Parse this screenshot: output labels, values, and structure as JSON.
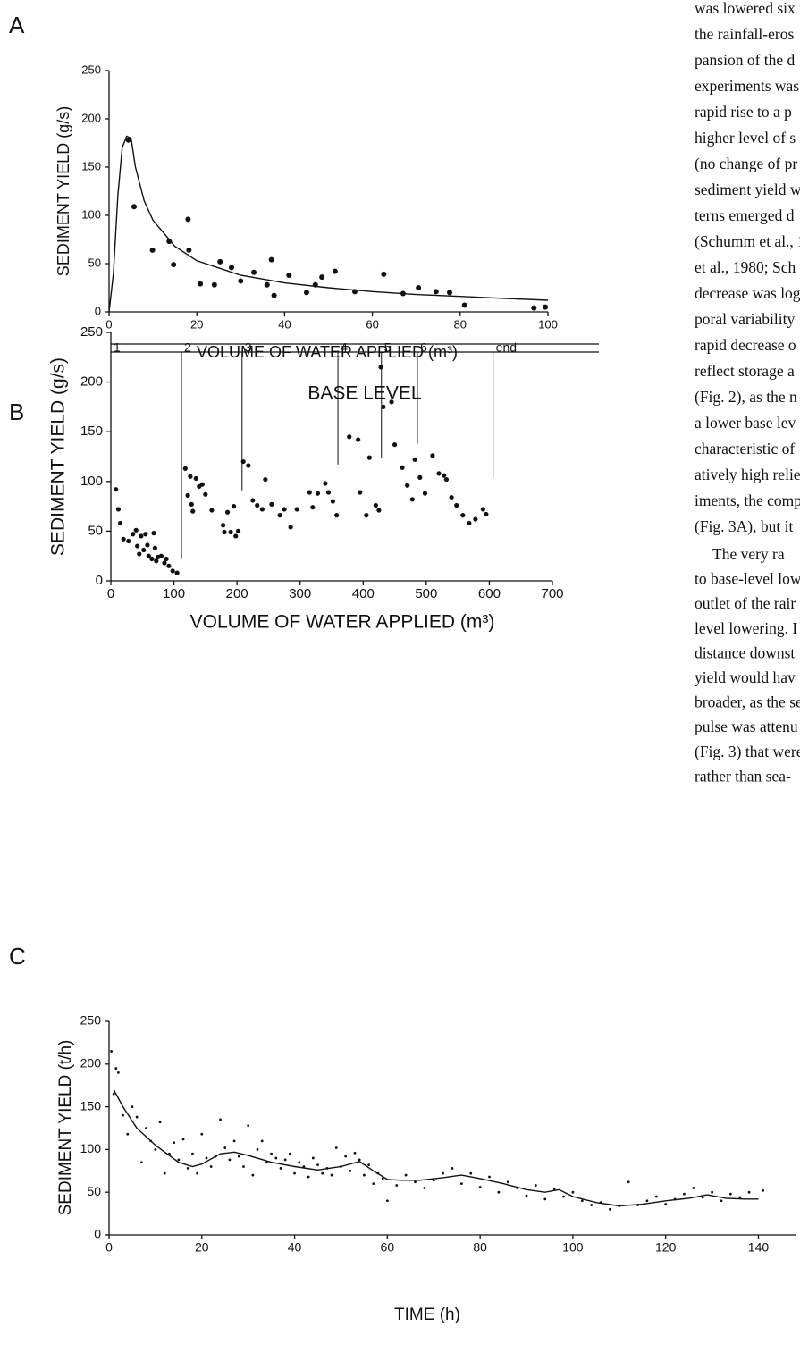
{
  "chart_data": [
    {
      "label": "A",
      "type": "scatter",
      "y_label": "SEDIMENT YIELD (g/s)",
      "x_label": "VOLUME OF WATER APPLIED (m³)",
      "xlim": [
        0,
        100
      ],
      "ylim": [
        0,
        250
      ],
      "xticks": [
        0,
        20,
        40,
        60,
        80,
        100
      ],
      "yticks": [
        0,
        50,
        100,
        150,
        200,
        250
      ],
      "points": {
        "x": [
          4.4,
          5.7,
          9.9,
          13.7,
          14.7,
          18,
          18.2,
          20.8,
          24,
          25.3,
          27.9,
          30,
          33,
          36,
          37,
          37.6,
          41,
          45,
          47,
          48.5,
          51.5,
          56,
          62.6,
          67,
          70.5,
          74.5,
          77.6,
          81,
          96.8,
          99.4
        ],
        "values": [
          178,
          109,
          64,
          73,
          49,
          96,
          64,
          29,
          28,
          52,
          46,
          32,
          41,
          28,
          54,
          17,
          38,
          20,
          28,
          36,
          42,
          21,
          39,
          19,
          25,
          21,
          20,
          7,
          4,
          5
        ]
      },
      "curve": {
        "x": [
          0,
          1,
          2,
          3,
          4,
          5,
          6,
          8,
          10,
          15,
          20,
          30,
          40,
          50,
          60,
          70,
          80,
          90,
          100
        ],
        "values": [
          0,
          40,
          120,
          170,
          182,
          180,
          150,
          115,
          95,
          68,
          53,
          38,
          30,
          25,
          21,
          18,
          16,
          14,
          12
        ]
      }
    },
    {
      "label": "B",
      "type": "scatter",
      "title": "BASE LEVEL",
      "y_label": "SEDIMENT YIELD (g/s)",
      "x_label": "VOLUME OF WATER APPLIED (m³)",
      "xlim": [
        0,
        700
      ],
      "ylim": [
        0,
        250
      ],
      "xticks": [
        0,
        100,
        200,
        300,
        400,
        500,
        600,
        700
      ],
      "yticks": [
        0,
        50,
        100,
        150,
        200,
        250
      ],
      "markers": {
        "labels": [
          "1",
          "2",
          "3",
          "4",
          "5",
          "6",
          "end"
        ],
        "x": [
          0,
          112,
          208,
          360,
          429,
          486,
          606
        ],
        "y": [
          null,
          22,
          91,
          117,
          124,
          138,
          104
        ]
      },
      "points": {
        "x": [
          8,
          12,
          15,
          20,
          28,
          35,
          40,
          42,
          45,
          48,
          52,
          55,
          58,
          60,
          65,
          68,
          70,
          72,
          75,
          80,
          85,
          88,
          92,
          98,
          105,
          118,
          122,
          126,
          128,
          130,
          135,
          140,
          145,
          150,
          160,
          178,
          180,
          185,
          190,
          195,
          198,
          202,
          210,
          218,
          225,
          232,
          240,
          245,
          255,
          268,
          275,
          285,
          295,
          315,
          320,
          328,
          340,
          345,
          352,
          358,
          378,
          392,
          395,
          405,
          410,
          420,
          425,
          428,
          432,
          445,
          450,
          462,
          470,
          478,
          482,
          490,
          498,
          510,
          520,
          528,
          532,
          540,
          548,
          558,
          568,
          578,
          590,
          595
        ],
        "values": [
          92,
          72,
          58,
          42,
          40,
          47,
          51,
          35,
          27,
          45,
          31,
          47,
          36,
          25,
          22,
          48,
          33,
          20,
          24,
          25,
          18,
          22,
          15,
          10,
          8,
          113,
          86,
          105,
          77,
          70,
          103,
          95,
          97,
          87,
          71,
          56,
          49,
          69,
          49,
          75,
          45,
          50,
          120,
          116,
          81,
          76,
          72,
          102,
          77,
          66,
          72,
          54,
          72,
          89,
          74,
          88,
          98,
          89,
          80,
          66,
          145,
          142,
          89,
          66,
          124,
          76,
          71,
          215,
          175,
          180,
          137,
          114,
          96,
          82,
          122,
          104,
          88,
          126,
          108,
          106,
          102,
          84,
          76,
          66,
          58,
          62,
          72,
          67
        ]
      }
    },
    {
      "label": "C",
      "type": "scatter",
      "y_label": "SEDIMENT YIELD (t/h)",
      "x_label": "TIME (h)",
      "xlim": [
        0,
        148
      ],
      "ylim": [
        0,
        250
      ],
      "xticks": [
        0,
        20,
        40,
        60,
        80,
        100,
        120,
        140
      ],
      "yticks": [
        0,
        50,
        100,
        150,
        200,
        250
      ],
      "points": {
        "x": [
          0.5,
          1,
          1.5,
          2,
          3,
          4,
          5,
          6,
          7,
          8,
          9,
          10,
          11,
          12,
          13,
          14,
          15,
          16,
          17,
          18,
          19,
          20,
          21,
          22,
          23,
          24,
          25,
          26,
          27,
          28,
          29,
          30,
          31,
          32,
          33,
          34,
          35,
          36,
          37,
          38,
          39,
          40,
          41,
          42,
          43,
          44,
          45,
          46,
          47,
          48,
          49,
          50,
          51,
          52,
          53,
          54,
          55,
          56,
          57,
          58,
          59,
          60,
          62,
          64,
          66,
          68,
          70,
          72,
          74,
          76,
          78,
          80,
          82,
          84,
          86,
          88,
          90,
          92,
          94,
          96,
          98,
          100,
          102,
          104,
          106,
          108,
          110,
          112,
          114,
          116,
          118,
          120,
          122,
          124,
          126,
          128,
          130,
          132,
          134,
          136,
          138,
          141
        ],
        "values": [
          215,
          165,
          195,
          190,
          140,
          118,
          150,
          138,
          85,
          125,
          110,
          100,
          132,
          72,
          95,
          108,
          88,
          112,
          78,
          95,
          72,
          118,
          90,
          80,
          92,
          135,
          102,
          88,
          110,
          92,
          80,
          128,
          70,
          100,
          110,
          85,
          95,
          90,
          78,
          88,
          95,
          72,
          85,
          80,
          68,
          90,
          82,
          72,
          78,
          70,
          102,
          80,
          92,
          75,
          96,
          88,
          70,
          82,
          60,
          72,
          66,
          40,
          58,
          70,
          62,
          55,
          64,
          72,
          78,
          60,
          72,
          56,
          68,
          50,
          62,
          55,
          46,
          58,
          42,
          54,
          45,
          50,
          40,
          35,
          38,
          30,
          34,
          62,
          35,
          40,
          45,
          36,
          42,
          48,
          55,
          44,
          50,
          40,
          48,
          44,
          50,
          52
        ]
      },
      "curve": {
        "x": [
          1,
          3,
          6,
          10,
          15,
          18,
          20,
          24,
          27,
          30,
          35,
          40,
          45,
          50,
          54,
          57,
          60,
          63,
          67,
          72,
          76,
          80,
          85,
          90,
          94,
          97,
          100,
          105,
          110,
          115,
          120,
          125,
          129,
          133,
          137,
          140
        ],
        "values": [
          170,
          150,
          125,
          105,
          85,
          80,
          83,
          95,
          97,
          93,
          85,
          80,
          76,
          80,
          86,
          75,
          65,
          64,
          64,
          67,
          70,
          66,
          60,
          53,
          50,
          53,
          45,
          38,
          34,
          36,
          40,
          43,
          47,
          43,
          42,
          42
        ]
      }
    }
  ],
  "body_text": [
    [
      "was lowered six t",
      "the rainfall-eros",
      "pansion of the d",
      "experiments was",
      "rapid rise to a p",
      "higher level of s",
      "(no change of pr",
      "sediment yield w",
      "terns emerged d",
      "(Schumm et al., 1",
      "et al., 1980; Sch",
      "decrease was log",
      "poral variability",
      "rapid decrease o",
      "reflect storage a",
      "(Fig. 2), as the n",
      "a lower base lev",
      "characteristic of",
      "atively high relie",
      "iments, the comp",
      "(Fig. 3A), but it"
    ],
    [
      "The very ra",
      "to base-level low",
      "outlet of the rair",
      "level lowering. I",
      "distance downst",
      "yield would hav",
      "broader, as the se",
      "pulse was attenu",
      "(Fig. 3) that were",
      "rather than sea-"
    ]
  ]
}
